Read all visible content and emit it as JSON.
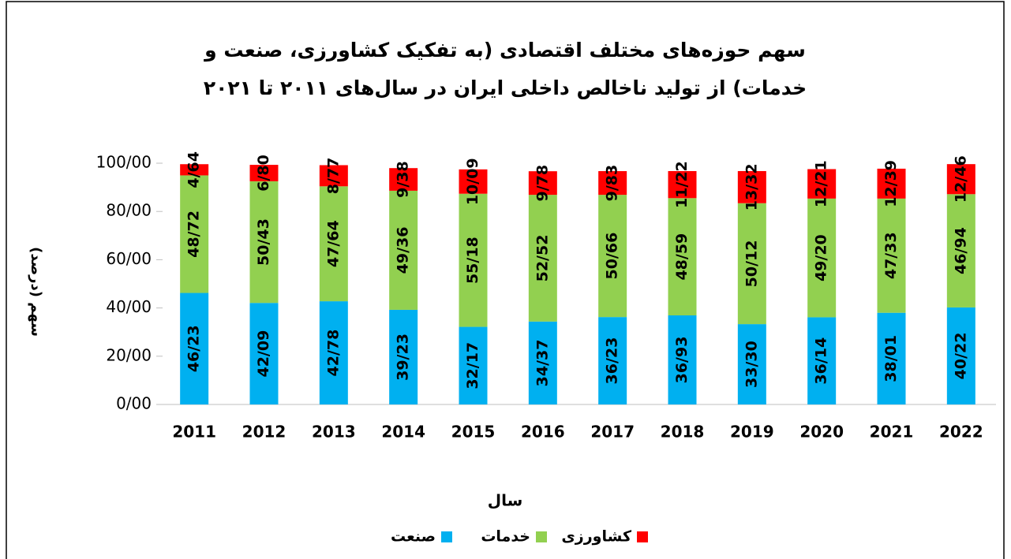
{
  "chart_data": {
    "type": "stacked_bar",
    "title": "سهم حوزه‌های مختلف اقتصادی (به تفکیک کشاورزی، صنعت و خدمات) از تولید ناخالص داخلی ایران در سال‌های ۲۰۱۱ تا ۲۰۲۱",
    "x_label": "سال",
    "y_label": "سهم (درصد)",
    "categories": [
      "2011",
      "2012",
      "2013",
      "2014",
      "2015",
      "2016",
      "2017",
      "2018",
      "2019",
      "2020",
      "2021",
      "2022"
    ],
    "series": [
      {
        "name": "صنعت",
        "color": "#00b0f0",
        "values": [
          46.23,
          42.09,
          42.78,
          39.23,
          32.17,
          34.37,
          36.23,
          36.93,
          33.3,
          36.14,
          38.01,
          40.22
        ],
        "value_labels": [
          "46/23",
          "42/09",
          "42/78",
          "39/23",
          "32/17",
          "34/37",
          "36/23",
          "36/93",
          "33/30",
          "36/14",
          "38/01",
          "40/22"
        ]
      },
      {
        "name": "خدمات",
        "color": "#92d050",
        "values": [
          48.72,
          50.43,
          47.64,
          49.36,
          55.18,
          52.52,
          50.66,
          48.59,
          50.12,
          49.2,
          47.33,
          46.94
        ],
        "value_labels": [
          "48/72",
          "50/43",
          "47/64",
          "49/36",
          "55/18",
          "52/52",
          "50/66",
          "48/59",
          "50/12",
          "49/20",
          "47/33",
          "46/94"
        ]
      },
      {
        "name": "کشاورزی",
        "color": "#ff0000",
        "values": [
          4.64,
          6.8,
          8.77,
          9.38,
          10.09,
          9.78,
          9.83,
          11.22,
          13.32,
          12.21,
          12.39,
          12.46
        ],
        "value_labels": [
          "4/64",
          "6/80",
          "8/77",
          "9/38",
          "10/09",
          "9/78",
          "9/83",
          "11/22",
          "13/32",
          "12/21",
          "12/39",
          "12/46"
        ]
      }
    ],
    "ylim": [
      0,
      100
    ],
    "yticks": [
      {
        "value": 0,
        "label": "0/00"
      },
      {
        "value": 20,
        "label": "20/00"
      },
      {
        "value": 40,
        "label": "40/00"
      },
      {
        "value": 60,
        "label": "60/00"
      },
      {
        "value": 80,
        "label": "80/00"
      },
      {
        "value": 100,
        "label": "100/00"
      }
    ],
    "grid": false,
    "legend": "bottom"
  }
}
